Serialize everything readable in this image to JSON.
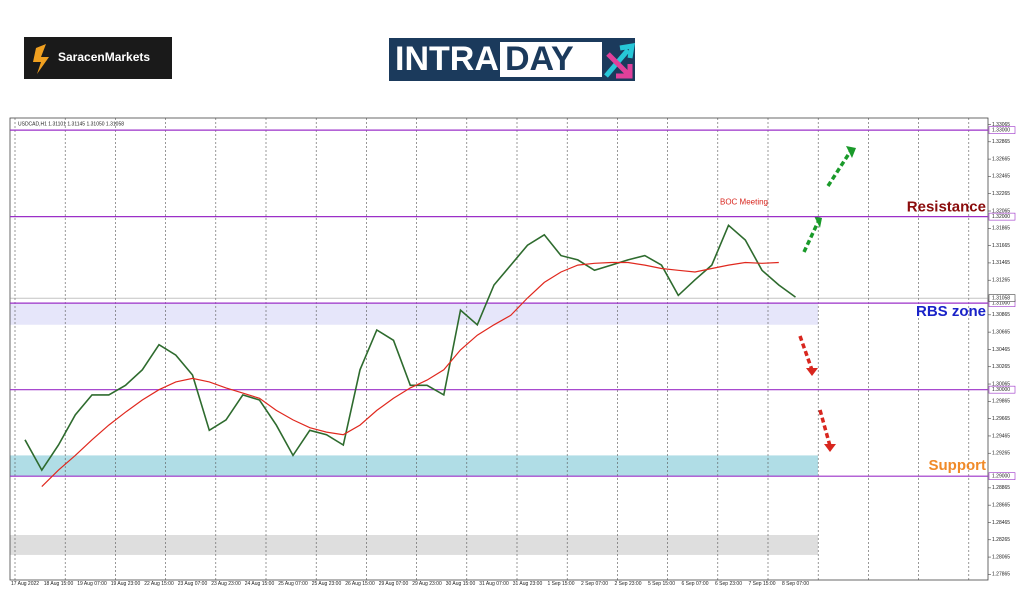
{
  "header": {
    "brand": "SaracenMarkets",
    "banner_left": "INTRA",
    "banner_right": "DAY"
  },
  "chart_data": {
    "type": "line",
    "title": "USDCAD,H1 1.31101 1.31145 1.31050 1.31058",
    "categories": [
      "17 Aug 2022",
      null,
      "18 Aug 15:00",
      null,
      "19 Aug 07:00",
      null,
      "19 Aug 23:00",
      null,
      "22 Aug 15:00",
      null,
      "23 Aug 07:00",
      null,
      "23 Aug 23:00",
      null,
      "24 Aug 15:00",
      null,
      "25 Aug 07:00",
      null,
      "25 Aug 23:00",
      null,
      "26 Aug 15:00",
      null,
      "29 Aug 07:00",
      null,
      "29 Aug 23:00",
      null,
      "30 Aug 15:00",
      null,
      "31 Aug 07:00",
      null,
      "31 Aug 23:00",
      null,
      "1 Sep 15:00",
      null,
      "2 Sep 07:00",
      null,
      "2 Sep 23:00",
      null,
      "5 Sep 15:00",
      null,
      "6 Sep 07:00",
      null,
      "6 Sep 23:00",
      null,
      "7 Sep 15:00",
      null,
      "8 Sep 07:00"
    ],
    "series": [
      {
        "color": "#2e6b2e",
        "values": [
          1.2942,
          1.2907,
          1.2936,
          1.2971,
          1.2994,
          1.2994,
          1.3005,
          1.3023,
          1.3052,
          1.304,
          1.3017,
          1.2953,
          1.2965,
          1.2994,
          1.2988,
          1.2959,
          1.2924,
          1.2953,
          1.2948,
          1.2936,
          1.3023,
          1.3069,
          1.3057,
          1.3005,
          1.3005,
          1.2994,
          1.3092,
          1.3075,
          1.3121,
          1.3144,
          1.3167,
          1.3179,
          1.3155,
          1.315,
          1.3138,
          1.3144,
          1.315,
          1.3155,
          1.3144,
          1.3109,
          1.3127,
          1.3144,
          1.319,
          1.3173,
          1.3138,
          1.3121,
          1.3107
        ]
      },
      {
        "color": "#e0281e",
        "values": [
          null,
          1.2888,
          1.2907,
          1.2924,
          1.2942,
          1.2959,
          1.2974,
          1.2988,
          1.3,
          1.3009,
          1.3013,
          1.3009,
          1.3002,
          1.2996,
          1.299,
          1.2976,
          1.2965,
          1.2956,
          1.2951,
          1.2948,
          1.2959,
          1.2976,
          1.299,
          1.3002,
          1.3011,
          1.3023,
          1.3046,
          1.3063,
          1.3075,
          1.3086,
          1.3106,
          1.3124,
          1.3136,
          1.3144,
          1.3146,
          1.3147,
          1.3147,
          1.3144,
          1.314,
          1.3138,
          1.3136,
          1.314,
          1.3144,
          1.3147,
          1.3146,
          1.3147,
          null
        ]
      }
    ],
    "ylim": [
      1.278,
      1.3314
    ],
    "yticks": [
      1.27865,
      1.28065,
      1.28265,
      1.28465,
      1.28665,
      1.28865,
      1.29265,
      1.29465,
      1.29665,
      1.29865,
      1.30065,
      1.30265,
      1.30465,
      1.30665,
      1.30865,
      1.31265,
      1.31465,
      1.31665,
      1.31865,
      1.32065,
      1.32265,
      1.32465,
      1.32665,
      1.32865,
      1.33065
    ],
    "levels": [
      {
        "value": 1.33,
        "label": "1.33000"
      },
      {
        "value": 1.32,
        "label": "1.32000"
      },
      {
        "value": 1.31,
        "label": "1.31000"
      },
      {
        "value": 1.3,
        "label": "1.30000"
      },
      {
        "value": 1.29,
        "label": "1.29000"
      }
    ],
    "last_price": {
      "value": 1.31058,
      "label": "1.31058"
    },
    "level_color": "#9b30c8",
    "zones": [
      {
        "name": "RBS zone",
        "range": [
          1.3075,
          1.31
        ],
        "color": "#e6e6fa",
        "label_color": "#1a23c8"
      },
      {
        "name": "Support",
        "range": [
          1.29,
          1.2924
        ],
        "color": "#b0dde6",
        "label_color": "#f08a28"
      },
      {
        "range": [
          1.2809,
          1.2832
        ],
        "color": "#dedede"
      }
    ],
    "annotations": [
      {
        "text": "Resistance",
        "value": 1.32,
        "color": "#8b0d0d"
      },
      {
        "text": "BOC Meeting",
        "value": 1.3205,
        "color": "#d8261e"
      }
    ],
    "grid": true
  }
}
